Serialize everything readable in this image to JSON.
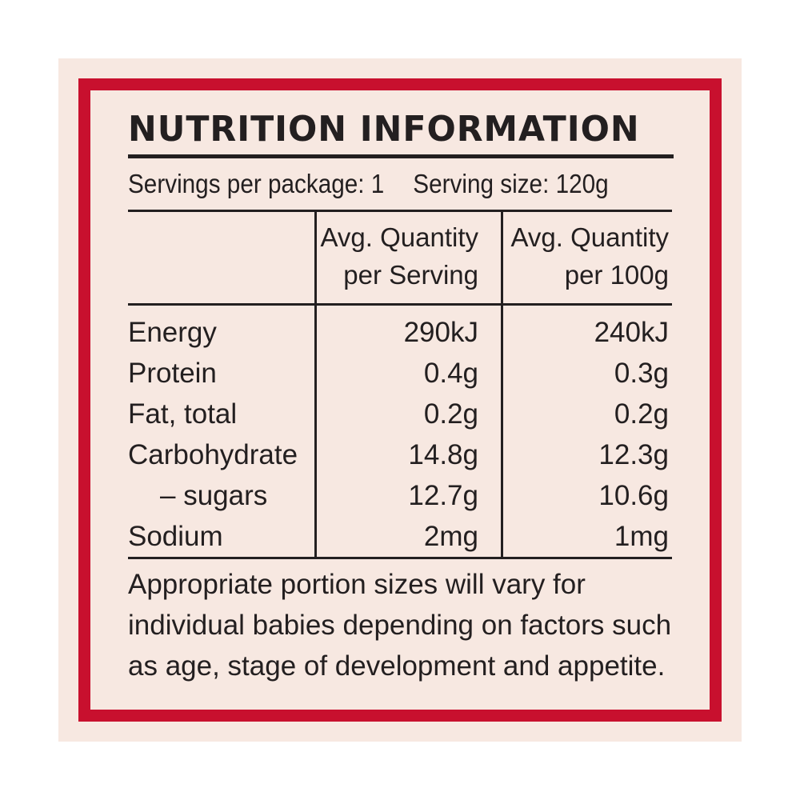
{
  "colors": {
    "border_red": "#c8102e",
    "panel_background": "#f7e8e1",
    "text": "#231f20"
  },
  "title": "NUTRITION INFORMATION",
  "servings_per_package": "Servings per package: 1",
  "serving_size": "Serving size: 120g",
  "columns": {
    "per_serving": [
      "Avg. Quantity",
      "per Serving"
    ],
    "per_100g": [
      "Avg. Quantity",
      "per 100g"
    ]
  },
  "rows": [
    {
      "name": "Energy",
      "per_serving": "290kJ",
      "per_100g": "240kJ"
    },
    {
      "name": "Protein",
      "per_serving": "0.4g",
      "per_100g": "0.3g"
    },
    {
      "name": "Fat, total",
      "per_serving": "0.2g",
      "per_100g": "0.2g"
    },
    {
      "name": "Carbohydrate",
      "per_serving": "14.8g",
      "per_100g": "12.3g"
    },
    {
      "name": "– sugars",
      "per_serving": "12.7g",
      "per_100g": "10.6g"
    },
    {
      "name": "Sodium",
      "per_serving": "2mg",
      "per_100g": "1mg"
    }
  ],
  "footnote": [
    "Appropriate portion sizes will vary for",
    "individual babies depending on factors such",
    "as age, stage of development and appetite."
  ]
}
